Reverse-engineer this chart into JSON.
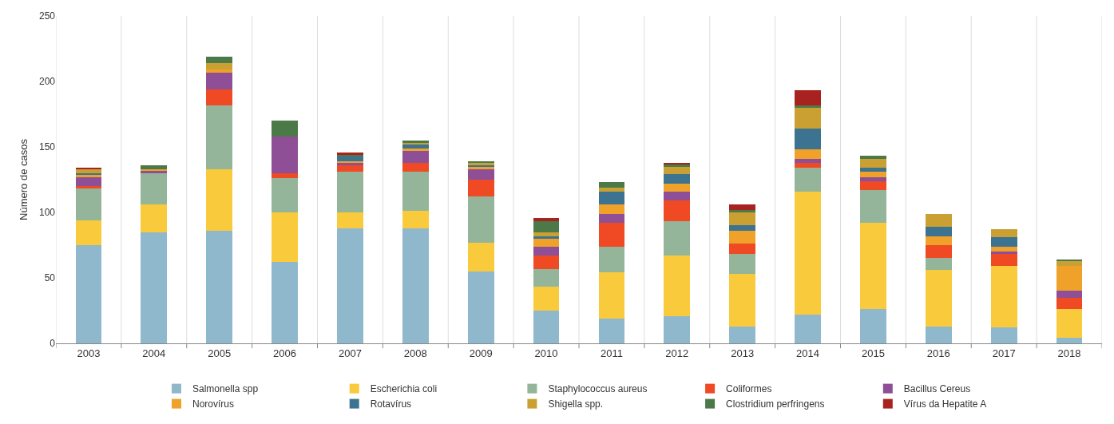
{
  "chart_data": {
    "type": "bar",
    "stacked": true,
    "ylabel": "Número de casos",
    "categories": [
      "2003",
      "2004",
      "2005",
      "2006",
      "2007",
      "2008",
      "2009",
      "2010",
      "2011",
      "2012",
      "2013",
      "2014",
      "2015",
      "2016",
      "2017",
      "2018"
    ],
    "ylim": [
      0,
      250
    ],
    "yticks": [
      0,
      50,
      100,
      150,
      200,
      250
    ],
    "grid": "x",
    "legend": "bottom",
    "series": [
      {
        "name": "Salmonella spp",
        "color": "#8fb8cc",
        "values": [
          75,
          85,
          86,
          62,
          88,
          88,
          55,
          25,
          19,
          21,
          13,
          22,
          26,
          13,
          12,
          4
        ]
      },
      {
        "name": "Escherichia coli",
        "color": "#f9cb3c",
        "values": [
          19,
          21,
          47,
          38,
          12,
          13,
          22,
          18,
          35,
          46,
          40,
          94,
          66,
          43,
          47,
          22
        ]
      },
      {
        "name": "Staphylococcus aureus",
        "color": "#94b59a",
        "values": [
          24,
          24,
          49,
          26,
          31,
          30,
          35,
          14,
          20,
          26,
          15,
          18,
          25,
          9,
          0,
          0
        ]
      },
      {
        "name": "Coliformes",
        "color": "#ef4a23",
        "values": [
          2,
          0,
          12,
          4,
          5,
          7,
          13,
          10,
          18,
          16,
          8,
          4,
          7,
          10,
          9,
          9
        ]
      },
      {
        "name": "Bacillus Cereus",
        "color": "#8e4f96",
        "values": [
          7,
          2,
          13,
          28,
          2,
          9,
          8,
          7,
          7,
          7,
          0,
          3,
          3,
          0,
          2,
          5
        ]
      },
      {
        "name": "Norovírus",
        "color": "#f0a12a",
        "values": [
          2,
          1,
          2,
          0,
          1,
          2,
          2,
          6,
          7,
          6,
          10,
          7,
          4,
          7,
          4,
          19
        ]
      },
      {
        "name": "Rotavírus",
        "color": "#3c7391",
        "values": [
          1,
          null,
          0,
          0,
          4,
          3,
          1,
          2,
          10,
          7,
          4,
          16,
          3,
          7,
          7,
          0
        ]
      },
      {
        "name": "Shigella spp.",
        "color": "#caa032",
        "values": [
          3,
          null,
          5,
          0,
          0,
          1,
          2,
          3,
          3,
          6,
          10,
          16,
          7,
          10,
          6,
          4
        ]
      },
      {
        "name": "Clostridium perfringens",
        "color": "#4b7a48",
        "values": [
          null,
          3,
          5,
          12,
          1,
          2,
          1,
          8,
          4,
          2,
          2,
          2,
          2,
          0,
          0,
          1
        ]
      },
      {
        "name": "Vírus da Hepatite A",
        "color": "#a8221f",
        "values": [
          1,
          0,
          0,
          0,
          2,
          0,
          0,
          3,
          0,
          1,
          4,
          11,
          0,
          0,
          0,
          0
        ]
      }
    ]
  }
}
